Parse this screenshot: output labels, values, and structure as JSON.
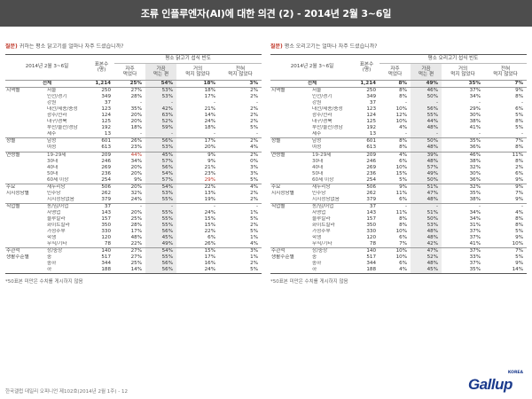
{
  "title": "조류 인플루엔자(AI)에 대한 의견 (2) - 2014년 2월 3~6일",
  "footer": "한국갤럽 데일리 오피니언 제102호(2014년 2월 1주) - 12",
  "logo": {
    "word": "Gallup",
    "tag": "KOREA"
  },
  "colors": {
    "banner": "#4d4d4d",
    "highlight": "#c0392b",
    "brand": "#1a3a8c"
  },
  "panels": [
    {
      "question_label": "질문)",
      "question": "귀하는 평소 닭고기를 얼마나 자주 드셨습니까?",
      "date_header": "2014년 2월 3~6일",
      "n_header": "표본수\n(명)",
      "freq_header": "평소 닭고기 섭식 빈도",
      "cols": [
        "자주\n먹었다",
        "가끔\n먹는 편",
        "거의\n먹지 않았다",
        "전혀\n먹지 않았다"
      ],
      "rows": [
        {
          "group": "전체",
          "label": "",
          "n": "1,214",
          "vals": [
            "25%",
            "54%",
            "18%",
            "3%"
          ],
          "total": true
        },
        {
          "group": "지역별",
          "label": "서울",
          "n": "250",
          "vals": [
            "27%",
            "53%",
            "18%",
            "2%"
          ],
          "sep": true
        },
        {
          "group": "",
          "label": "인천/경기",
          "n": "349",
          "vals": [
            "28%",
            "53%",
            "17%",
            "2%"
          ]
        },
        {
          "group": "",
          "label": "강원",
          "n": "37",
          "vals": [
            "-",
            "-",
            "-",
            "-"
          ]
        },
        {
          "group": "",
          "label": "대전/세종/충청",
          "n": "123",
          "vals": [
            "35%",
            "42%",
            "21%",
            "2%"
          ]
        },
        {
          "group": "",
          "label": "광주/전라",
          "n": "124",
          "vals": [
            "20%",
            "63%",
            "14%",
            "2%"
          ]
        },
        {
          "group": "",
          "label": "대구/경북",
          "n": "125",
          "vals": [
            "20%",
            "52%",
            "24%",
            "2%"
          ]
        },
        {
          "group": "",
          "label": "부산/울산/경남",
          "n": "192",
          "vals": [
            "18%",
            "59%",
            "18%",
            "5%"
          ]
        },
        {
          "group": "",
          "label": "제주",
          "n": "13",
          "vals": [
            "-",
            "-",
            "-",
            "-"
          ]
        },
        {
          "group": "성별",
          "label": "남성",
          "n": "601",
          "vals": [
            "26%",
            "56%",
            "17%",
            "2%"
          ],
          "sep": true
        },
        {
          "group": "",
          "label": "여성",
          "n": "613",
          "vals": [
            "23%",
            "53%",
            "20%",
            "4%"
          ]
        },
        {
          "group": "연령별",
          "label": "19-29세",
          "n": "209",
          "vals": [
            "44%",
            "45%",
            "9%",
            "2%"
          ],
          "sep": true,
          "red": [
            0
          ]
        },
        {
          "group": "",
          "label": "30대",
          "n": "246",
          "vals": [
            "34%",
            "57%",
            "9%",
            "0%"
          ]
        },
        {
          "group": "",
          "label": "40대",
          "n": "269",
          "vals": [
            "20%",
            "56%",
            "21%",
            "3%"
          ]
        },
        {
          "group": "",
          "label": "50대",
          "n": "236",
          "vals": [
            "20%",
            "54%",
            "23%",
            "3%"
          ]
        },
        {
          "group": "",
          "label": "60세 이상",
          "n": "254",
          "vals": [
            "9%",
            "57%",
            "29%",
            "5%"
          ],
          "red": [
            2
          ]
        },
        {
          "group": "주요",
          "label": "새누리당",
          "n": "506",
          "vals": [
            "20%",
            "54%",
            "22%",
            "4%"
          ],
          "sep": true
        },
        {
          "group": "지지정당별",
          "label": "민주당",
          "n": "262",
          "vals": [
            "32%",
            "53%",
            "13%",
            "2%"
          ]
        },
        {
          "group": "",
          "label": "지지정당없음",
          "n": "379",
          "vals": [
            "24%",
            "55%",
            "19%",
            "2%"
          ]
        },
        {
          "group": "직업별",
          "label": "농/임/어업",
          "n": "37",
          "vals": [
            "-",
            "-",
            "-",
            "-"
          ],
          "sep": true
        },
        {
          "group": "",
          "label": "자영업",
          "n": "143",
          "vals": [
            "20%",
            "55%",
            "24%",
            "1%"
          ]
        },
        {
          "group": "",
          "label": "블루칼라",
          "n": "157",
          "vals": [
            "25%",
            "55%",
            "15%",
            "5%"
          ]
        },
        {
          "group": "",
          "label": "화이트칼라",
          "n": "350",
          "vals": [
            "28%",
            "55%",
            "15%",
            "2%"
          ]
        },
        {
          "group": "",
          "label": "가정주부",
          "n": "330",
          "vals": [
            "17%",
            "56%",
            "22%",
            "5%"
          ]
        },
        {
          "group": "",
          "label": "학생",
          "n": "120",
          "vals": [
            "48%",
            "45%",
            "6%",
            "1%"
          ]
        },
        {
          "group": "",
          "label": "무직/기타",
          "n": "78",
          "vals": [
            "22%",
            "49%",
            "26%",
            "4%"
          ]
        },
        {
          "group": "주관적",
          "label": "상/중상",
          "n": "140",
          "vals": [
            "27%",
            "54%",
            "15%",
            "3%"
          ],
          "sep": true
        },
        {
          "group": "생활수준별",
          "label": "중",
          "n": "517",
          "vals": [
            "27%",
            "55%",
            "17%",
            "1%"
          ]
        },
        {
          "group": "",
          "label": "중하",
          "n": "344",
          "vals": [
            "25%",
            "56%",
            "16%",
            "2%"
          ]
        },
        {
          "group": "",
          "label": "하",
          "n": "188",
          "vals": [
            "14%",
            "56%",
            "24%",
            "5%"
          ],
          "tbot": true
        }
      ],
      "note": "*50표본 미만은 수치를 게시하지 않음"
    },
    {
      "question_label": "질문)",
      "question": "평소 오리고기는 얼마나 자주 드셨습니까?",
      "date_header": "2014년 2월 3~6일",
      "n_header": "표본수\n(명)",
      "freq_header": "평소 오리고기 섭식 빈도",
      "cols": [
        "자주\n먹었다",
        "가끔\n먹는 편",
        "거의\n먹지 않았다",
        "전혀\n먹지 않았다"
      ],
      "rows": [
        {
          "group": "전체",
          "label": "",
          "n": "1,214",
          "vals": [
            "8%",
            "49%",
            "35%",
            "7%"
          ],
          "total": true
        },
        {
          "group": "지역별",
          "label": "서울",
          "n": "250",
          "vals": [
            "8%",
            "46%",
            "37%",
            "9%"
          ],
          "sep": true
        },
        {
          "group": "",
          "label": "인천/경기",
          "n": "349",
          "vals": [
            "8%",
            "50%",
            "34%",
            "8%"
          ]
        },
        {
          "group": "",
          "label": "강원",
          "n": "37",
          "vals": [
            "-",
            "-",
            "-",
            "-"
          ]
        },
        {
          "group": "",
          "label": "대전/세종/충청",
          "n": "123",
          "vals": [
            "10%",
            "56%",
            "29%",
            "6%"
          ]
        },
        {
          "group": "",
          "label": "광주/전라",
          "n": "124",
          "vals": [
            "12%",
            "55%",
            "30%",
            "5%"
          ]
        },
        {
          "group": "",
          "label": "대구/경북",
          "n": "125",
          "vals": [
            "10%",
            "44%",
            "38%",
            "8%"
          ]
        },
        {
          "group": "",
          "label": "부산/울산/경남",
          "n": "192",
          "vals": [
            "4%",
            "48%",
            "41%",
            "5%"
          ]
        },
        {
          "group": "",
          "label": "제주",
          "n": "13",
          "vals": [
            "-",
            "-",
            "-",
            "-"
          ]
        },
        {
          "group": "성별",
          "label": "남성",
          "n": "601",
          "vals": [
            "8%",
            "50%",
            "35%",
            "7%"
          ],
          "sep": true
        },
        {
          "group": "",
          "label": "여성",
          "n": "613",
          "vals": [
            "8%",
            "48%",
            "36%",
            "8%"
          ]
        },
        {
          "group": "연령별",
          "label": "19-29세",
          "n": "209",
          "vals": [
            "4%",
            "39%",
            "46%",
            "11%"
          ],
          "sep": true
        },
        {
          "group": "",
          "label": "30대",
          "n": "246",
          "vals": [
            "6%",
            "48%",
            "38%",
            "8%"
          ]
        },
        {
          "group": "",
          "label": "40대",
          "n": "269",
          "vals": [
            "10%",
            "57%",
            "32%",
            "2%"
          ]
        },
        {
          "group": "",
          "label": "50대",
          "n": "236",
          "vals": [
            "15%",
            "49%",
            "30%",
            "6%"
          ]
        },
        {
          "group": "",
          "label": "60세 이상",
          "n": "254",
          "vals": [
            "5%",
            "50%",
            "36%",
            "9%"
          ]
        },
        {
          "group": "주요",
          "label": "새누리당",
          "n": "506",
          "vals": [
            "9%",
            "51%",
            "32%",
            "9%"
          ],
          "sep": true
        },
        {
          "group": "지지정당별",
          "label": "민주당",
          "n": "262",
          "vals": [
            "11%",
            "47%",
            "35%",
            "7%"
          ]
        },
        {
          "group": "",
          "label": "지지정당없음",
          "n": "379",
          "vals": [
            "6%",
            "48%",
            "38%",
            "9%"
          ]
        },
        {
          "group": "직업별",
          "label": "농/임/어업",
          "n": "37",
          "vals": [
            "-",
            "-",
            "-",
            "-"
          ],
          "sep": true
        },
        {
          "group": "",
          "label": "자영업",
          "n": "143",
          "vals": [
            "11%",
            "51%",
            "34%",
            "4%"
          ]
        },
        {
          "group": "",
          "label": "블루칼라",
          "n": "157",
          "vals": [
            "8%",
            "50%",
            "34%",
            "8%"
          ]
        },
        {
          "group": "",
          "label": "화이트칼라",
          "n": "350",
          "vals": [
            "8%",
            "53%",
            "31%",
            "8%"
          ]
        },
        {
          "group": "",
          "label": "가정주부",
          "n": "330",
          "vals": [
            "10%",
            "48%",
            "37%",
            "5%"
          ]
        },
        {
          "group": "",
          "label": "학생",
          "n": "120",
          "vals": [
            "6%",
            "48%",
            "37%",
            "9%"
          ]
        },
        {
          "group": "",
          "label": "무직/기타",
          "n": "78",
          "vals": [
            "7%",
            "42%",
            "41%",
            "10%"
          ]
        },
        {
          "group": "주관적",
          "label": "상/중상",
          "n": "140",
          "vals": [
            "10%",
            "47%",
            "37%",
            "7%"
          ],
          "sep": true
        },
        {
          "group": "생활수준별",
          "label": "중",
          "n": "517",
          "vals": [
            "10%",
            "52%",
            "33%",
            "5%"
          ]
        },
        {
          "group": "",
          "label": "중하",
          "n": "344",
          "vals": [
            "6%",
            "48%",
            "37%",
            "9%"
          ]
        },
        {
          "group": "",
          "label": "하",
          "n": "188",
          "vals": [
            "4%",
            "45%",
            "35%",
            "14%"
          ],
          "tbot": true
        }
      ],
      "note": "*50표본 미만은 수치를 게시하지 않음"
    }
  ]
}
